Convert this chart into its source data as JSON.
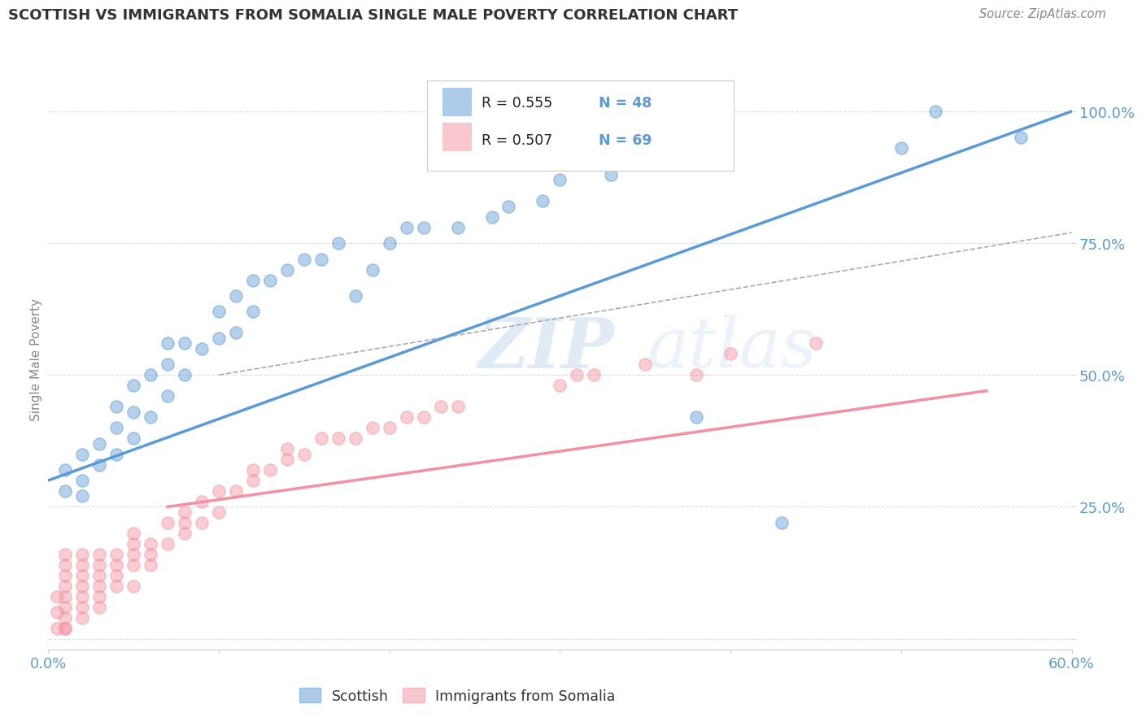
{
  "title": "SCOTTISH VS IMMIGRANTS FROM SOMALIA SINGLE MALE POVERTY CORRELATION CHART",
  "source_text": "Source: ZipAtlas.com",
  "ylabel": "Single Male Poverty",
  "xlim": [
    0.0,
    0.6
  ],
  "ylim": [
    -0.02,
    1.08
  ],
  "x_ticks": [
    0.0,
    0.1,
    0.2,
    0.3,
    0.4,
    0.5,
    0.6
  ],
  "x_tick_labels": [
    "0.0%",
    "",
    "",
    "",
    "",
    "",
    "60.0%"
  ],
  "y_ticks": [
    0.0,
    0.25,
    0.5,
    0.75,
    1.0
  ],
  "y_tick_labels": [
    "",
    "25.0%",
    "50.0%",
    "75.0%",
    "100.0%"
  ],
  "blue_color": "#5B9BD5",
  "pink_color": "#F4909F",
  "legend_R_label_blue": "R = 0.555",
  "legend_N_label_blue": "N = 48",
  "legend_R_label_pink": "R = 0.507",
  "legend_N_label_pink": "N = 69",
  "watermark_zip": "ZIP",
  "watermark_atlas": "atlas",
  "blue_scatter_x": [
    0.01,
    0.01,
    0.02,
    0.02,
    0.02,
    0.03,
    0.03,
    0.04,
    0.04,
    0.04,
    0.05,
    0.05,
    0.05,
    0.06,
    0.06,
    0.07,
    0.07,
    0.07,
    0.08,
    0.08,
    0.09,
    0.1,
    0.1,
    0.11,
    0.11,
    0.12,
    0.12,
    0.13,
    0.14,
    0.15,
    0.16,
    0.17,
    0.18,
    0.19,
    0.2,
    0.21,
    0.22,
    0.24,
    0.26,
    0.27,
    0.29,
    0.3,
    0.33,
    0.38,
    0.43,
    0.5,
    0.52,
    0.57
  ],
  "blue_scatter_y": [
    0.28,
    0.32,
    0.27,
    0.3,
    0.35,
    0.33,
    0.37,
    0.35,
    0.4,
    0.44,
    0.38,
    0.43,
    0.48,
    0.42,
    0.5,
    0.46,
    0.52,
    0.56,
    0.5,
    0.56,
    0.55,
    0.57,
    0.62,
    0.58,
    0.65,
    0.62,
    0.68,
    0.68,
    0.7,
    0.72,
    0.72,
    0.75,
    0.65,
    0.7,
    0.75,
    0.78,
    0.78,
    0.78,
    0.8,
    0.82,
    0.83,
    0.87,
    0.88,
    0.42,
    0.22,
    0.93,
    1.0,
    0.95
  ],
  "pink_scatter_x": [
    0.005,
    0.005,
    0.005,
    0.01,
    0.01,
    0.01,
    0.01,
    0.01,
    0.01,
    0.01,
    0.01,
    0.01,
    0.02,
    0.02,
    0.02,
    0.02,
    0.02,
    0.02,
    0.02,
    0.03,
    0.03,
    0.03,
    0.03,
    0.03,
    0.03,
    0.04,
    0.04,
    0.04,
    0.04,
    0.05,
    0.05,
    0.05,
    0.05,
    0.05,
    0.06,
    0.06,
    0.06,
    0.07,
    0.07,
    0.08,
    0.08,
    0.08,
    0.09,
    0.09,
    0.1,
    0.1,
    0.11,
    0.12,
    0.12,
    0.13,
    0.14,
    0.14,
    0.15,
    0.16,
    0.17,
    0.18,
    0.19,
    0.2,
    0.21,
    0.22,
    0.23,
    0.24,
    0.3,
    0.31,
    0.32,
    0.35,
    0.38,
    0.4,
    0.45
  ],
  "pink_scatter_y": [
    0.02,
    0.05,
    0.08,
    0.02,
    0.04,
    0.06,
    0.08,
    0.1,
    0.12,
    0.14,
    0.16,
    0.02,
    0.04,
    0.06,
    0.08,
    0.1,
    0.12,
    0.14,
    0.16,
    0.06,
    0.08,
    0.1,
    0.12,
    0.14,
    0.16,
    0.1,
    0.12,
    0.14,
    0.16,
    0.1,
    0.14,
    0.16,
    0.18,
    0.2,
    0.14,
    0.16,
    0.18,
    0.18,
    0.22,
    0.2,
    0.22,
    0.24,
    0.22,
    0.26,
    0.24,
    0.28,
    0.28,
    0.3,
    0.32,
    0.32,
    0.34,
    0.36,
    0.35,
    0.38,
    0.38,
    0.38,
    0.4,
    0.4,
    0.42,
    0.42,
    0.44,
    0.44,
    0.48,
    0.5,
    0.5,
    0.52,
    0.5,
    0.54,
    0.56
  ],
  "blue_line_x": [
    0.0,
    0.6
  ],
  "blue_line_y": [
    0.3,
    1.0
  ],
  "pink_line_x": [
    0.07,
    0.55
  ],
  "pink_line_y": [
    0.25,
    0.47
  ],
  "dashed_line_x": [
    0.1,
    0.6
  ],
  "dashed_line_y": [
    0.5,
    0.77
  ],
  "background_color": "#FFFFFF",
  "grid_color": "#DDDDDD",
  "title_fontsize": 13,
  "tick_label_color": "#5B9BD5"
}
